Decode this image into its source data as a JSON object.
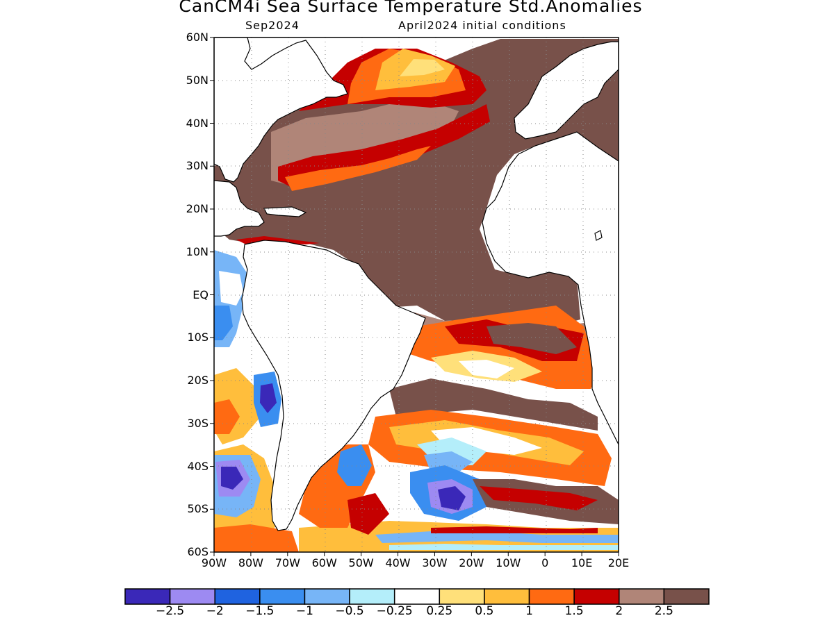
{
  "title": "CanCM4i Sea Surface Temperature Std.Anomalies",
  "subtitle_left": "Sep2024",
  "subtitle_right": "April2024 initial conditions",
  "lat_labels": [
    "60N",
    "50N",
    "40N",
    "30N",
    "20N",
    "10N",
    "EQ",
    "10S",
    "20S",
    "30S",
    "40S",
    "50S",
    "60S"
  ],
  "lon_labels": [
    "90W",
    "80W",
    "70W",
    "60W",
    "50W",
    "40W",
    "30W",
    "20W",
    "10W",
    "0",
    "10E",
    "20E"
  ],
  "colorbar": {
    "colors": [
      "#3a28b8",
      "#9d8af2",
      "#1f63e0",
      "#3a8ef0",
      "#77b5f7",
      "#b4eefa",
      "#ffffff",
      "#ffe07a",
      "#ffbe3c",
      "#ff6a12",
      "#c50000",
      "#b08578",
      "#78514a"
    ],
    "labels": [
      "−2.5",
      "−2",
      "−1.5",
      "−1",
      "−0.5",
      "−0.25",
      "0.25",
      "0.5",
      "1",
      "1.5",
      "2",
      "2.5"
    ]
  }
}
